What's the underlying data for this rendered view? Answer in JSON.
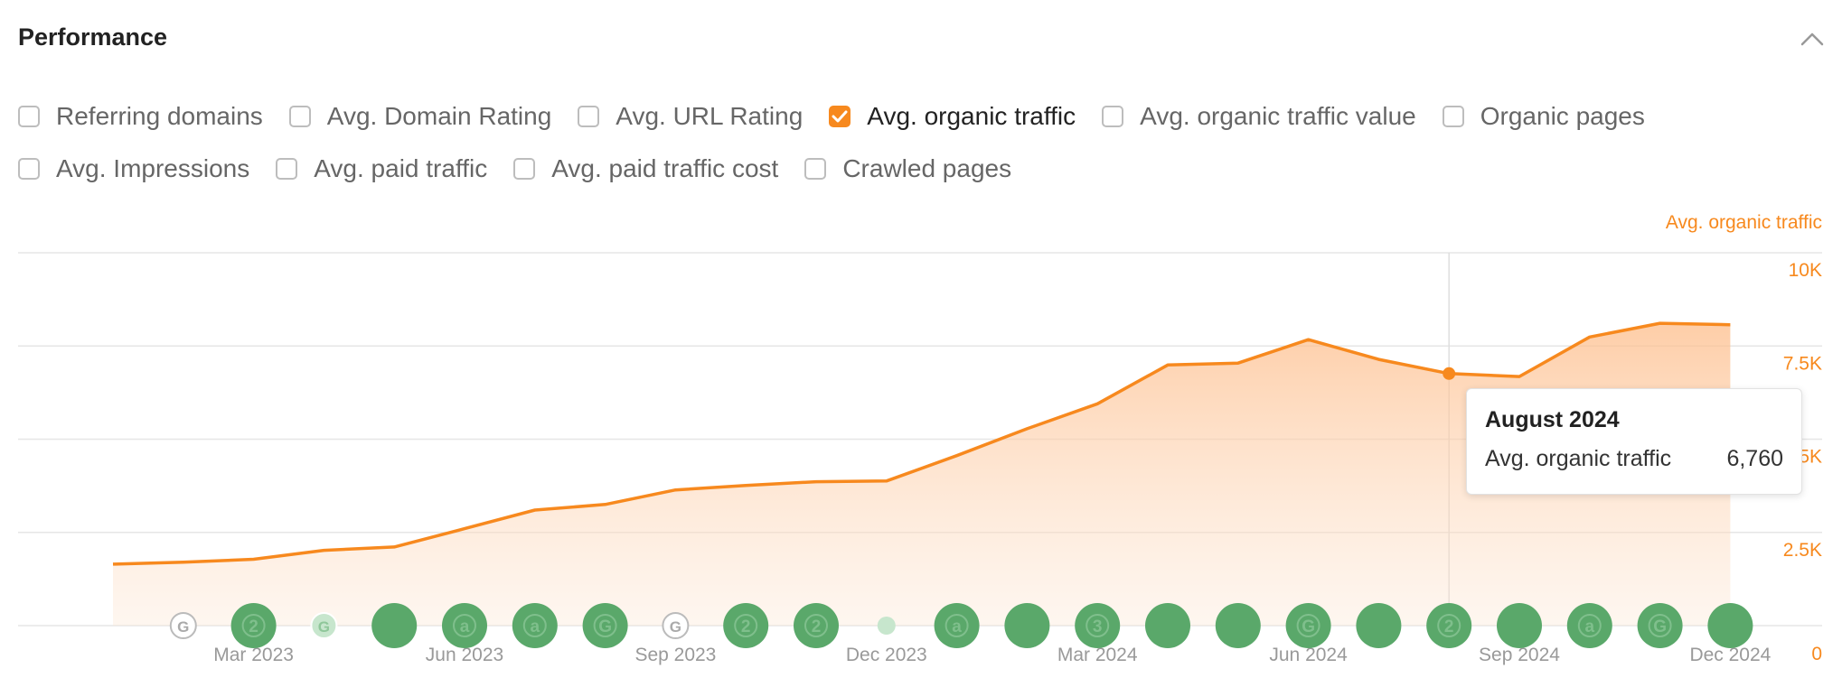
{
  "panel": {
    "title": "Performance"
  },
  "metrics": {
    "row1": [
      {
        "label": "Referring domains",
        "checked": false
      },
      {
        "label": "Avg. Domain Rating",
        "checked": false
      },
      {
        "label": "Avg. URL Rating",
        "checked": false
      },
      {
        "label": "Avg. organic traffic",
        "checked": true
      },
      {
        "label": "Avg. organic traffic value",
        "checked": false
      },
      {
        "label": "Organic pages",
        "checked": false
      }
    ],
    "row2": [
      {
        "label": "Avg. Impressions",
        "checked": false
      },
      {
        "label": "Avg. paid traffic",
        "checked": false
      },
      {
        "label": "Avg. paid traffic cost",
        "checked": false
      },
      {
        "label": "Crawled pages",
        "checked": false
      }
    ]
  },
  "colors": {
    "accent": "#f7891e",
    "update_green": "#5aa86a",
    "update_light": "#c7e6cd"
  },
  "tooltip": {
    "title": "August 2024",
    "metric": "Avg. organic traffic",
    "value": "6,760"
  },
  "chart_data": {
    "type": "area",
    "ylabel": "Avg. organic traffic",
    "ylim": [
      0,
      10000
    ],
    "yticks": [
      {
        "value": 0,
        "label": "0"
      },
      {
        "value": 2500,
        "label": "2.5K"
      },
      {
        "value": 5000,
        "label": "5K"
      },
      {
        "value": 7500,
        "label": "7.5K"
      },
      {
        "value": 10000,
        "label": "10K"
      }
    ],
    "x": [
      "2023-01",
      "2023-02",
      "2023-03",
      "2023-04",
      "2023-05",
      "2023-06",
      "2023-07",
      "2023-08",
      "2023-09",
      "2023-10",
      "2023-11",
      "2023-12",
      "2024-01",
      "2024-02",
      "2024-03",
      "2024-04",
      "2024-05",
      "2024-06",
      "2024-07",
      "2024-08",
      "2024-09",
      "2024-10",
      "2024-11",
      "2024-12"
    ],
    "xticks": [
      {
        "x": "2023-03",
        "label": "Mar 2023"
      },
      {
        "x": "2023-06",
        "label": "Jun 2023"
      },
      {
        "x": "2023-09",
        "label": "Sep 2023"
      },
      {
        "x": "2023-12",
        "label": "Dec 2023"
      },
      {
        "x": "2024-03",
        "label": "Mar 2024"
      },
      {
        "x": "2024-06",
        "label": "Jun 2024"
      },
      {
        "x": "2024-09",
        "label": "Sep 2024"
      },
      {
        "x": "2024-12",
        "label": "Dec 2024"
      }
    ],
    "series": [
      {
        "name": "Avg. organic traffic",
        "values": [
          1650,
          1700,
          1780,
          2020,
          2110,
          2600,
          3100,
          3250,
          3640,
          3760,
          3860,
          3880,
          4560,
          5280,
          5950,
          6990,
          7040,
          7670,
          7140,
          6760,
          6680,
          7740,
          8110,
          8070
        ]
      }
    ],
    "highlight": {
      "x": "2024-08",
      "value": 6760
    },
    "updates": [
      {
        "x": "2023-02",
        "label": "G",
        "style": "outline"
      },
      {
        "x": "2023-03",
        "label": "2",
        "style": "filled"
      },
      {
        "x": "2023-04",
        "label": "G",
        "style": "light"
      },
      {
        "x": "2023-05",
        "label": "",
        "style": "filled"
      },
      {
        "x": "2023-06",
        "label": "a",
        "style": "filled"
      },
      {
        "x": "2023-07",
        "label": "a",
        "style": "filled"
      },
      {
        "x": "2023-08",
        "label": "G",
        "style": "filled"
      },
      {
        "x": "2023-09",
        "label": "G",
        "style": "outline"
      },
      {
        "x": "2023-10",
        "label": "2",
        "style": "filled"
      },
      {
        "x": "2023-11",
        "label": "2",
        "style": "filled"
      },
      {
        "x": "2023-12",
        "label": "",
        "style": "dot"
      },
      {
        "x": "2024-01",
        "label": "a",
        "style": "filled"
      },
      {
        "x": "2024-02",
        "label": "",
        "style": "filled"
      },
      {
        "x": "2024-03",
        "label": "3",
        "style": "filled"
      },
      {
        "x": "2024-04",
        "label": "",
        "style": "filled"
      },
      {
        "x": "2024-05",
        "label": "",
        "style": "filled"
      },
      {
        "x": "2024-06",
        "label": "G",
        "style": "filled"
      },
      {
        "x": "2024-07",
        "label": "",
        "style": "filled"
      },
      {
        "x": "2024-08",
        "label": "2",
        "style": "filled"
      },
      {
        "x": "2024-09",
        "label": "",
        "style": "filled"
      },
      {
        "x": "2024-10",
        "label": "a",
        "style": "filled"
      },
      {
        "x": "2024-11",
        "label": "G",
        "style": "filled"
      },
      {
        "x": "2024-12",
        "label": "",
        "style": "filled"
      }
    ],
    "grid": true
  }
}
